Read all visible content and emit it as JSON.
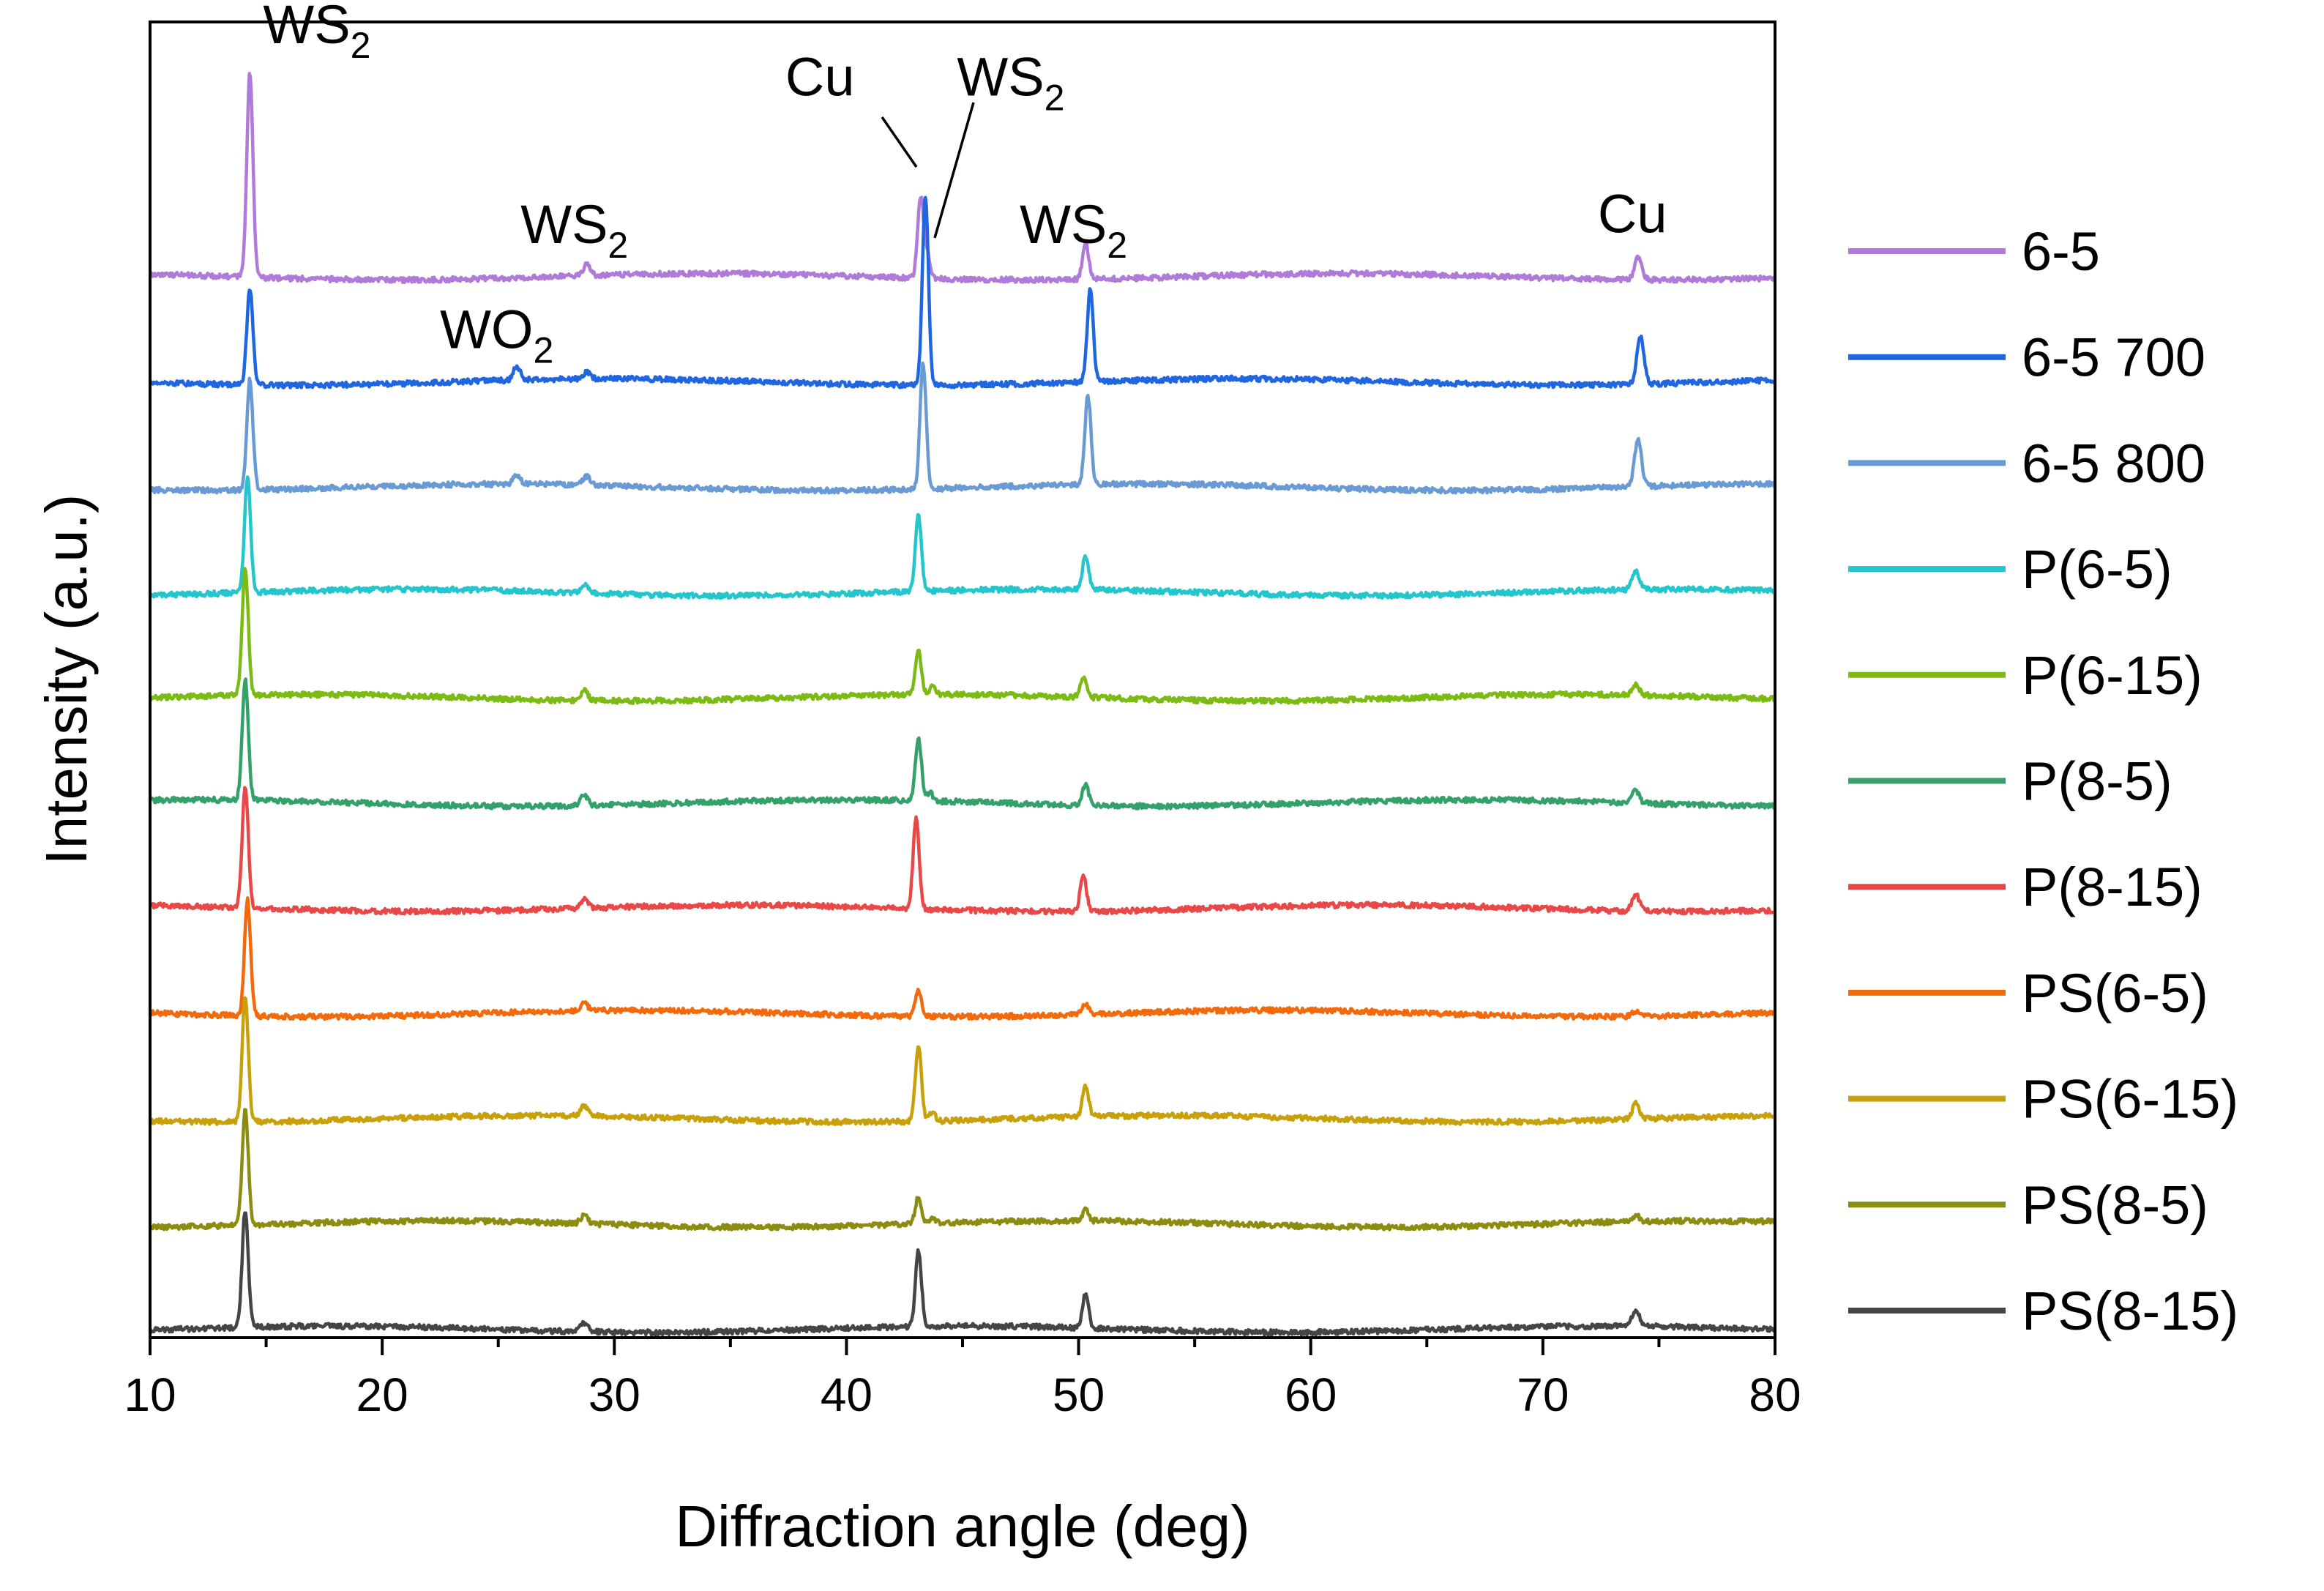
{
  "chart_data": {
    "type": "line",
    "title": "",
    "xlabel": "Diffraction angle (deg)",
    "ylabel": "Intensity (a.u.)",
    "xlim": [
      10,
      80
    ],
    "ylim": [
      0,
      12.5
    ],
    "xticks": [
      10,
      20,
      30,
      40,
      50,
      60,
      70,
      80
    ],
    "y_ticks_shown": false,
    "legend_position": "right",
    "series": [
      {
        "name": "6-5",
        "color": "#b07ad8",
        "offset": 10.0,
        "peaks": [
          [
            14.3,
            1.95,
            0.13
          ],
          [
            28.8,
            0.1,
            0.15
          ],
          [
            43.2,
            0.77,
            0.13
          ],
          [
            43.5,
            0.2,
            0.12
          ],
          [
            50.3,
            0.35,
            0.13
          ],
          [
            74.1,
            0.21,
            0.15
          ]
        ]
      },
      {
        "name": "6-5 700",
        "color": "#1f66e0",
        "offset": 9.0,
        "peaks": [
          [
            14.3,
            0.92,
            0.13
          ],
          [
            25.8,
            0.13,
            0.15
          ],
          [
            28.8,
            0.06,
            0.15
          ],
          [
            43.4,
            1.8,
            0.13
          ],
          [
            50.5,
            0.87,
            0.13
          ],
          [
            74.2,
            0.45,
            0.15
          ]
        ]
      },
      {
        "name": "6-5 800",
        "color": "#6a9ad4",
        "offset": 8.0,
        "peaks": [
          [
            14.3,
            1.05,
            0.13
          ],
          [
            25.8,
            0.09,
            0.15
          ],
          [
            28.8,
            0.08,
            0.15
          ],
          [
            43.3,
            1.2,
            0.13
          ],
          [
            50.4,
            0.85,
            0.13
          ],
          [
            74.1,
            0.44,
            0.15
          ]
        ]
      },
      {
        "name": "P(6-5)",
        "color": "#22c6cc",
        "offset": 7.0,
        "peaks": [
          [
            14.2,
            1.1,
            0.13
          ],
          [
            28.7,
            0.08,
            0.15
          ],
          [
            43.1,
            0.72,
            0.13
          ],
          [
            50.3,
            0.32,
            0.13
          ],
          [
            74.0,
            0.18,
            0.15
          ]
        ]
      },
      {
        "name": "P(6-15)",
        "color": "#7cba14",
        "offset": 6.0,
        "peaks": [
          [
            14.1,
            1.2,
            0.13
          ],
          [
            28.7,
            0.1,
            0.15
          ],
          [
            43.1,
            0.42,
            0.13
          ],
          [
            43.7,
            0.08,
            0.12
          ],
          [
            50.2,
            0.18,
            0.13
          ],
          [
            74.0,
            0.1,
            0.15
          ]
        ]
      },
      {
        "name": "P(8-5)",
        "color": "#34a06a",
        "offset": 5.0,
        "peaks": [
          [
            14.1,
            1.15,
            0.13
          ],
          [
            28.7,
            0.1,
            0.15
          ],
          [
            43.1,
            0.6,
            0.13
          ],
          [
            43.6,
            0.08,
            0.12
          ],
          [
            50.3,
            0.2,
            0.13
          ],
          [
            74.0,
            0.12,
            0.15
          ]
        ]
      },
      {
        "name": "P(8-15)",
        "color": "#e84848",
        "offset": 4.0,
        "peaks": [
          [
            14.1,
            1.15,
            0.13
          ],
          [
            28.7,
            0.08,
            0.15
          ],
          [
            43.0,
            0.85,
            0.13
          ],
          [
            50.2,
            0.35,
            0.13
          ],
          [
            74.0,
            0.16,
            0.15
          ]
        ]
      },
      {
        "name": "PS(6-5)",
        "color": "#f26a0c",
        "offset": 3.0,
        "peaks": [
          [
            14.2,
            1.1,
            0.13
          ],
          [
            28.7,
            0.08,
            0.15
          ],
          [
            43.1,
            0.25,
            0.13
          ],
          [
            50.3,
            0.1,
            0.13
          ],
          [
            74.0,
            0.05,
            0.15
          ]
        ]
      },
      {
        "name": "PS(6-15)",
        "color": "#c8a00a",
        "offset": 2.0,
        "peaks": [
          [
            14.1,
            1.2,
            0.13
          ],
          [
            28.7,
            0.1,
            0.15
          ],
          [
            43.1,
            0.72,
            0.13
          ],
          [
            43.7,
            0.08,
            0.12
          ],
          [
            50.3,
            0.3,
            0.13
          ],
          [
            74.0,
            0.15,
            0.15
          ]
        ]
      },
      {
        "name": "PS(8-5)",
        "color": "#8c8c10",
        "offset": 1.0,
        "peaks": [
          [
            14.1,
            1.1,
            0.13
          ],
          [
            28.7,
            0.08,
            0.15
          ],
          [
            43.1,
            0.26,
            0.13
          ],
          [
            43.7,
            0.06,
            0.12
          ],
          [
            50.3,
            0.1,
            0.13
          ],
          [
            74.0,
            0.06,
            0.15
          ]
        ]
      },
      {
        "name": "PS(8-15)",
        "color": "#454545",
        "offset": 0.0,
        "peaks": [
          [
            14.1,
            1.12,
            0.13
          ],
          [
            28.7,
            0.08,
            0.15
          ],
          [
            43.1,
            0.72,
            0.13
          ],
          [
            50.3,
            0.32,
            0.13
          ],
          [
            74.0,
            0.16,
            0.15
          ]
        ]
      }
    ],
    "annotations": [
      {
        "main": "WS",
        "sub": "2",
        "x": 14.3,
        "y": 12.3
      },
      {
        "main": "WS",
        "sub": "2",
        "x": 28.8,
        "y": 10.4
      },
      {
        "main": "WO",
        "sub": "2",
        "x": 25.8,
        "y": 9.4
      },
      {
        "main": "Cu",
        "sub": "",
        "x": 43.2,
        "y": 11.8
      },
      {
        "main": "WS",
        "sub": "2",
        "x": 43.5,
        "y": 11.8
      },
      {
        "main": "WS",
        "sub": "2",
        "x": 50.3,
        "y": 10.4
      },
      {
        "main": "Cu",
        "sub": "",
        "x": 74.1,
        "y": 10.5
      }
    ]
  }
}
